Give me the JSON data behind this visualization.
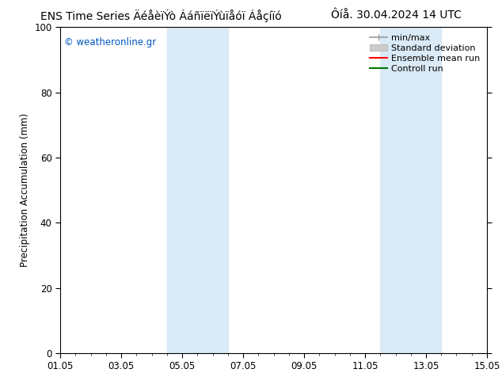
{
  "title_left": "ENS Time Series ÄéåèïÝò ÁáñïëïÝùïåóï Áåçíïó",
  "title_right": "Ôíå. 30.04.2024 14 UTC",
  "ylabel": "Precipitation Accumulation (mm)",
  "ylim": [
    0,
    100
  ],
  "yticks": [
    0,
    20,
    40,
    60,
    80,
    100
  ],
  "xtick_labels": [
    "01.05",
    "03.05",
    "05.05",
    "07.05",
    "09.05",
    "11.05",
    "13.05",
    "15.05"
  ],
  "xtick_positions": [
    0,
    2,
    4,
    6,
    8,
    10,
    12,
    14
  ],
  "xlim": [
    0,
    14
  ],
  "shaded_regions": [
    {
      "x_start": 3.5,
      "x_end": 5.5,
      "color": "#daeaf6"
    },
    {
      "x_start": 10.5,
      "x_end": 12.5,
      "color": "#daeaf6"
    }
  ],
  "watermark_text": "© weatheronline.gr",
  "watermark_color": "#0055bb",
  "bg_color": "#ffffff",
  "plot_bg_color": "#ffffff",
  "border_color": "#000000",
  "title_fontsize": 10,
  "tick_fontsize": 8.5,
  "ylabel_fontsize": 8.5,
  "legend_fontsize": 8,
  "legend_items": [
    {
      "label": "min/max",
      "color": "#999999"
    },
    {
      "label": "Standard deviation",
      "color": "#cccccc"
    },
    {
      "label": "Ensemble mean run",
      "color": "#ff0000"
    },
    {
      "label": "Controll run",
      "color": "#007700"
    }
  ]
}
